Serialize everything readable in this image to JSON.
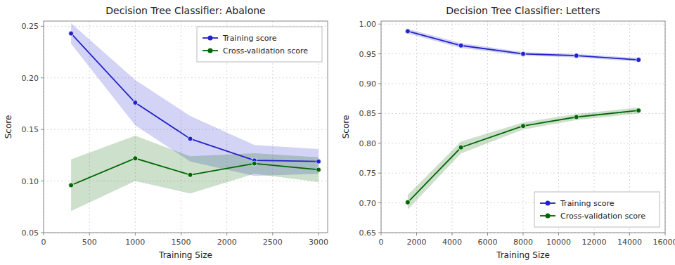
{
  "chart_data": [
    {
      "type": "line",
      "title": "Decision Tree Classifier: Abalone",
      "x_label": "Training Size",
      "y_label": "Score",
      "x": [
        300,
        1000,
        1600,
        2300,
        3000
      ],
      "series": [
        {
          "name": "Training score",
          "color": "#2222cc",
          "marker": "circle",
          "values": [
            0.243,
            0.176,
            0.141,
            0.12,
            0.119
          ],
          "std": [
            0.01,
            0.022,
            0.022,
            0.015,
            0.012
          ]
        },
        {
          "name": "Cross-validation score",
          "color": "#006600",
          "marker": "circle",
          "values": [
            0.096,
            0.122,
            0.106,
            0.117,
            0.111
          ],
          "std": [
            0.025,
            0.022,
            0.018,
            0.01,
            0.012
          ]
        }
      ],
      "xlim": [
        0,
        3100
      ],
      "ylim": [
        0.05,
        0.255
      ],
      "xticks": [
        0,
        500,
        1000,
        1500,
        2000,
        2500,
        3000
      ],
      "yticks": [
        0.05,
        {
          "value": 0.1,
          "label": "0.10"
        },
        0.15,
        {
          "value": 0.2,
          "label": "0.20"
        },
        0.25
      ],
      "grid": true,
      "legend": "upper right"
    },
    {
      "type": "line",
      "title": "Decision Tree Classifier: Letters",
      "x_label": "Training Size",
      "y_label": "Score",
      "x": [
        1500,
        4500,
        8000,
        11000,
        14500
      ],
      "series": [
        {
          "name": "Training score",
          "color": "#2222cc",
          "marker": "circle",
          "values": [
            0.988,
            0.964,
            0.95,
            0.947,
            0.94
          ],
          "std": [
            0.004,
            0.004,
            0.003,
            0.003,
            0.003
          ]
        },
        {
          "name": "Cross-validation score",
          "color": "#006600",
          "marker": "circle",
          "values": [
            0.701,
            0.793,
            0.829,
            0.844,
            0.855
          ],
          "std": [
            0.012,
            0.01,
            0.006,
            0.005,
            0.005
          ]
        }
      ],
      "xlim": [
        0,
        16000
      ],
      "ylim": [
        0.65,
        1.005
      ],
      "xticks": [
        0,
        2000,
        4000,
        6000,
        8000,
        10000,
        12000,
        14000,
        16000
      ],
      "yticks": [
        0.65,
        {
          "value": 0.7,
          "label": "0.70"
        },
        0.75,
        {
          "value": 0.8,
          "label": "0.80"
        },
        0.85,
        {
          "value": 0.9,
          "label": "0.90"
        },
        0.95,
        {
          "value": 1.0,
          "label": "1.00"
        }
      ],
      "grid": true,
      "legend": "lower right"
    }
  ]
}
